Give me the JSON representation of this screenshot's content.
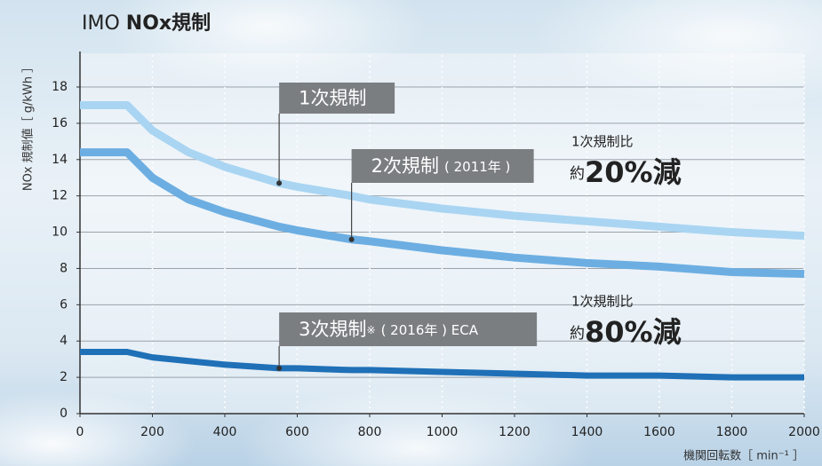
{
  "chart_data": {
    "type": "line",
    "title": [
      "IMO",
      "NOx規制"
    ],
    "y_label": "NOx 規制値［ g/kWh ］",
    "x_label": "機関回転数［ min⁻¹ ］",
    "x": [
      0,
      130,
      200,
      300,
      400,
      550,
      600,
      750,
      800,
      1000,
      1200,
      1400,
      1600,
      1800,
      2000
    ],
    "series": [
      {
        "name": "1次規制",
        "color": "#a9d5f2",
        "values": [
          17,
          17,
          15.6,
          14.4,
          13.6,
          12.7,
          12.5,
          12.0,
          11.8,
          11.3,
          10.9,
          10.6,
          10.3,
          10.0,
          9.8
        ]
      },
      {
        "name": "2次規制",
        "note": "( 2011年 )",
        "color": "#6caee2",
        "values": [
          14.4,
          14.4,
          13.0,
          11.8,
          11.1,
          10.3,
          10.1,
          9.6,
          9.5,
          9.0,
          8.6,
          8.3,
          8.1,
          7.8,
          7.7
        ]
      },
      {
        "name": "3次規制",
        "mark": "※",
        "note": "( 2016年 ) ECA",
        "color": "#1f70b7",
        "values": [
          3.4,
          3.4,
          3.1,
          2.9,
          2.7,
          2.5,
          2.5,
          2.4,
          2.4,
          2.3,
          2.2,
          2.1,
          2.1,
          2.0,
          2.0
        ]
      }
    ],
    "comparisons": [
      {
        "label": "1次規制比",
        "prefix": "約",
        "value": "20%減"
      },
      {
        "label": "1次規制比",
        "prefix": "約",
        "value": "80%減"
      }
    ],
    "xlim": [
      0,
      2000
    ],
    "xticks": [
      0,
      200,
      400,
      600,
      800,
      1000,
      1200,
      1400,
      1600,
      1800,
      2000
    ],
    "ylim": [
      0,
      18
    ],
    "yticks": [
      0,
      2,
      4,
      6,
      8,
      10,
      12,
      14,
      16,
      18
    ],
    "grid": true
  }
}
